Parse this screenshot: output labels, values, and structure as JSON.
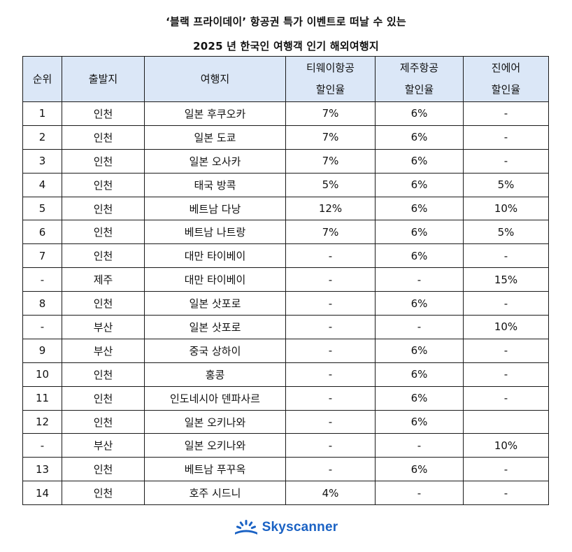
{
  "title_line1": "‘블랙 프라이데이’ 항공권 특가 이벤트로 떠날 수 있는",
  "title_line2": "2025 년 한국인 여행객 인기 해외여행지",
  "headers": {
    "rank": "순위",
    "departure": "출발지",
    "destination": "여행지",
    "tway_line1": "티웨이항공",
    "tway_line2": "할인율",
    "jeju_line1": "제주항공",
    "jeju_line2": "할인율",
    "jinair_line1": "진에어",
    "jinair_line2": "할인율"
  },
  "rows": [
    {
      "rank": "1",
      "departure": "인천",
      "destination": "일본 후쿠오카",
      "tway": "7%",
      "jeju": "6%",
      "jinair": "-"
    },
    {
      "rank": "2",
      "departure": "인천",
      "destination": "일본 도쿄",
      "tway": "7%",
      "jeju": "6%",
      "jinair": "-"
    },
    {
      "rank": "3",
      "departure": "인천",
      "destination": "일본 오사카",
      "tway": "7%",
      "jeju": "6%",
      "jinair": "-"
    },
    {
      "rank": "4",
      "departure": "인천",
      "destination": "태국 방콕",
      "tway": "5%",
      "jeju": "6%",
      "jinair": "5%"
    },
    {
      "rank": "5",
      "departure": "인천",
      "destination": "베트남 다낭",
      "tway": "12%",
      "jeju": "6%",
      "jinair": "10%"
    },
    {
      "rank": "6",
      "departure": "인천",
      "destination": "베트남 나트랑",
      "tway": "7%",
      "jeju": "6%",
      "jinair": "5%"
    },
    {
      "rank": "7",
      "departure": "인천",
      "destination": "대만 타이베이",
      "tway": "-",
      "jeju": "6%",
      "jinair": "-"
    },
    {
      "rank": "-",
      "departure": "제주",
      "destination": "대만 타이베이",
      "tway": "-",
      "jeju": "-",
      "jinair": "15%"
    },
    {
      "rank": "8",
      "departure": "인천",
      "destination": "일본 삿포로",
      "tway": "-",
      "jeju": "6%",
      "jinair": "-"
    },
    {
      "rank": "-",
      "departure": "부산",
      "destination": "일본 삿포로",
      "tway": "-",
      "jeju": "-",
      "jinair": "10%"
    },
    {
      "rank": "9",
      "departure": "부산",
      "destination": "중국 상하이",
      "tway": "-",
      "jeju": "6%",
      "jinair": "-"
    },
    {
      "rank": "10",
      "departure": "인천",
      "destination": "홍콩",
      "tway": "-",
      "jeju": "6%",
      "jinair": "-"
    },
    {
      "rank": "11",
      "departure": "인천",
      "destination": "인도네시아 덴파사르",
      "tway": "-",
      "jeju": "6%",
      "jinair": "-"
    },
    {
      "rank": "12",
      "departure": "인천",
      "destination": "일본 오키나와",
      "tway": "-",
      "jeju": "6%",
      "jinair": ""
    },
    {
      "rank": "-",
      "departure": "부산",
      "destination": "일본 오키나와",
      "tway": "-",
      "jeju": "-",
      "jinair": "10%"
    },
    {
      "rank": "13",
      "departure": "인천",
      "destination": "베트남 푸꾸옥",
      "tway": "-",
      "jeju": "6%",
      "jinair": "-"
    },
    {
      "rank": "14",
      "departure": "인천",
      "destination": "호주 시드니",
      "tway": "4%",
      "jeju": "-",
      "jinair": "-"
    }
  ],
  "logo": {
    "text": "Skyscanner",
    "icon": "skyscanner-sunrise-icon",
    "color": "#1a62c4"
  },
  "colors": {
    "header_bg": "#dbe7f7",
    "border": "#1a1a1a"
  }
}
